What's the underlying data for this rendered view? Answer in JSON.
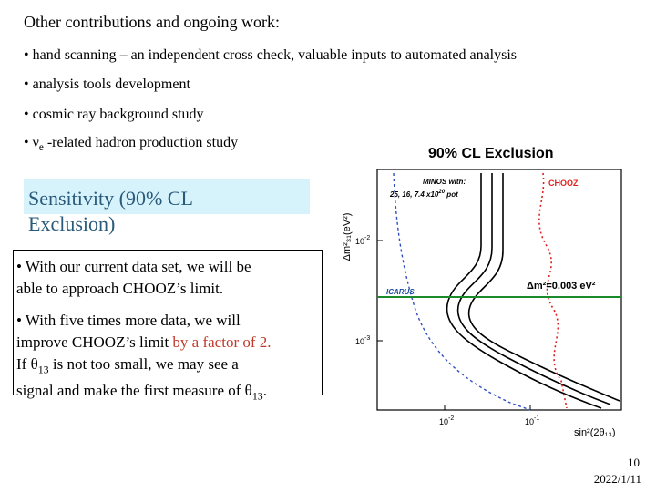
{
  "slide": {
    "title": "Other contributions and ongoing work:",
    "bullets": [
      "• hand scanning – an independent cross check, valuable inputs to automated analysis",
      "• analysis tools development",
      "• cosmic ray background study",
      "• ",
      "ν",
      "e",
      " -related hadron production study"
    ],
    "sensitivity_heading": [
      "Sensitivity (90% CL",
      "Exclusion)"
    ],
    "textbox": {
      "para1": [
        "• With our current data set, we will be",
        "able to approach CHOOZ’s limit."
      ],
      "para2_line1": "• With five times more data, we will",
      "para2_line2_a": "improve CHOOZ’s limit ",
      "para2_line2_b": "by a factor of 2.",
      "para2_line3_a": "If ",
      "theta": "θ",
      "theta_sub": "13",
      "para2_line3_b": " is not too small, we may see a",
      "para2_line4_a": "signal and make the first measure of ",
      "para2_line4_b": "."
    },
    "page_number": "10",
    "date": "2022/1/11"
  },
  "plot": {
    "title": "90% CL Exclusion",
    "ylabel": "Δm²₃₁(eV²)",
    "xlabel": "sin²(2θ₁₃)",
    "minos_label_line1": "MINOS with:",
    "minos_label_line2": "25, 16, 7.4 x10",
    "minos_label_exp": "20",
    "minos_label_unit": " pot",
    "chooz_label": "CHOOZ",
    "icarus_label": "ICARUS",
    "dm2_label": "Δm²=0.003 eV²",
    "ytick_upper": "10",
    "ytick_upper_exp": "-2",
    "ytick_lower": "10",
    "ytick_lower_exp": "-3",
    "xtick_left": "10",
    "xtick_left_exp": "-2",
    "xtick_right": "10",
    "xtick_right_exp": "-1",
    "colors": {
      "chooz": "#e02020",
      "icarus": "#1a8a2a",
      "minos": "#000000",
      "dashed_blue": "#3050c0"
    }
  }
}
